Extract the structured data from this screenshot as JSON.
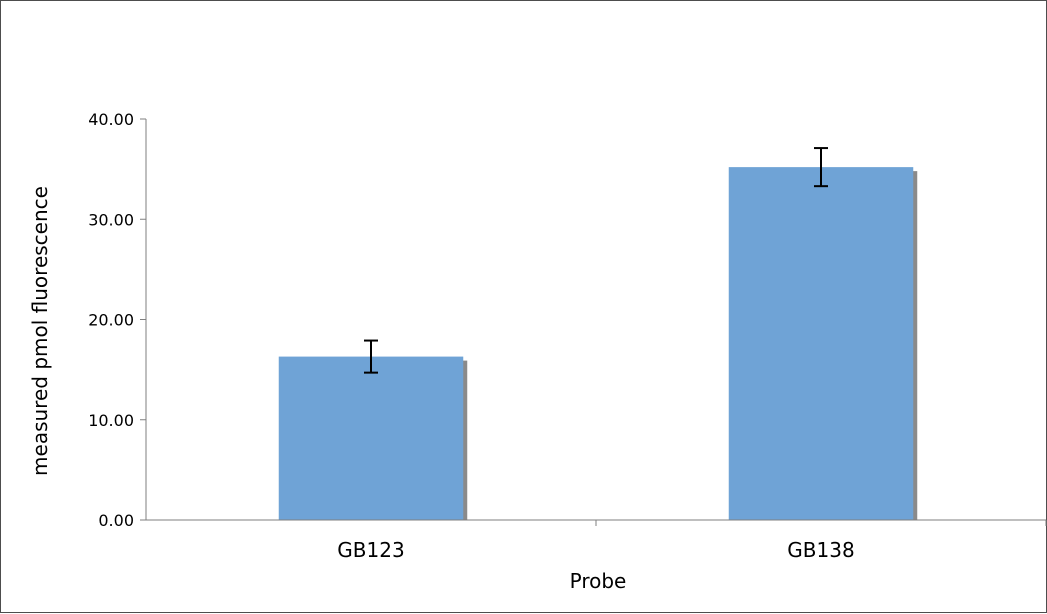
{
  "chart_data": {
    "type": "bar",
    "categories": [
      "GB123",
      "GB138"
    ],
    "values": [
      16.3,
      35.2
    ],
    "errors": [
      1.6,
      1.9
    ],
    "xlabel": "Probe",
    "ylabel": "measured pmol fluorescence",
    "ylim": [
      0,
      40
    ],
    "yticks": [
      "0.00",
      "10.00",
      "20.00",
      "30.00",
      "40.00"
    ],
    "ytick_values": [
      0,
      10,
      20,
      30,
      40
    ],
    "grid": false,
    "legend": "none",
    "colors": {
      "bar": "#6fa3d6",
      "shadow": "#8a8a8a",
      "axis": "#7f7f7f",
      "error": "#000000"
    }
  }
}
